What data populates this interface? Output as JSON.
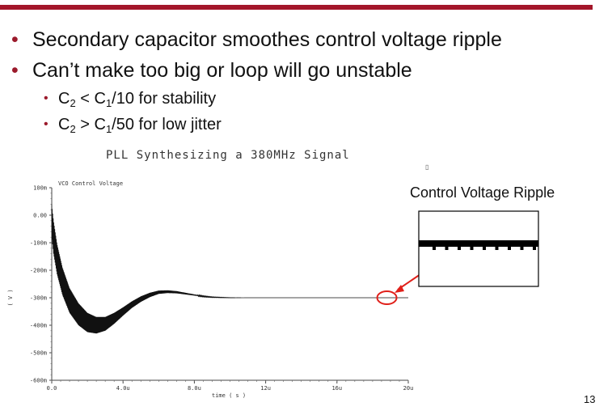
{
  "slide": {
    "bullets": [
      {
        "text": "Secondary capacitor smoothes control voltage ripple"
      },
      {
        "text": "Can’t make too big or loop will go unstable"
      }
    ],
    "sub_bullets": [
      {
        "a": "C",
        "a_sub": "2",
        "op": " < ",
        "b": "C",
        "b_sub": "1",
        "rest": "/10 for stability"
      },
      {
        "a": "C",
        "a_sub": "2",
        "op": " > ",
        "b": "C",
        "b_sub": "1",
        "rest": "/50 for low jitter"
      }
    ],
    "page_number": "13",
    "stray_mark": "▯",
    "ripple_label": "Control Voltage Ripple",
    "colors": {
      "accent": "#a3162a",
      "highlight": "#e0201a"
    }
  },
  "chart_data": {
    "type": "line",
    "title": "PLL Synthesizing a 380MHz Signal",
    "series_label": "VCO Control Voltage",
    "xlabel": "time ( s )",
    "ylabel": "( V )",
    "xlim": [
      0,
      20
    ],
    "ylim": [
      -0.6,
      0.1
    ],
    "x_ticks": [
      0,
      4,
      8,
      12,
      16,
      20
    ],
    "x_tick_labels": [
      "0.0",
      "4.0u",
      "8.0u",
      "12u",
      "16u",
      "20u"
    ],
    "y_ticks": [
      0.1,
      0.0,
      -0.1,
      -0.2,
      -0.3,
      -0.4,
      -0.5,
      -0.6
    ],
    "y_tick_labels": [
      "100m",
      "0.00",
      "-100m",
      "-200m",
      "-300m",
      "-400m",
      "-500m",
      "-600m"
    ],
    "envelope": {
      "x": [
        0,
        0.1,
        0.3,
        0.6,
        1.0,
        1.5,
        2.0,
        2.5,
        3.0,
        3.5,
        4.0,
        4.5,
        5.0,
        5.5,
        6.0,
        6.5,
        7.0,
        7.5,
        8.0,
        8.5,
        9.0,
        10,
        11,
        12,
        14,
        16,
        18,
        20
      ],
      "mean": [
        -0.02,
        -0.08,
        -0.16,
        -0.24,
        -0.31,
        -0.36,
        -0.39,
        -0.4,
        -0.395,
        -0.375,
        -0.35,
        -0.325,
        -0.305,
        -0.29,
        -0.28,
        -0.278,
        -0.28,
        -0.285,
        -0.29,
        -0.295,
        -0.298,
        -0.3,
        -0.3,
        -0.3,
        -0.3,
        -0.3,
        -0.3,
        -0.3
      ],
      "half_width": [
        0.06,
        0.06,
        0.055,
        0.05,
        0.045,
        0.04,
        0.035,
        0.03,
        0.025,
        0.02,
        0.015,
        0.012,
        0.01,
        0.008,
        0.006,
        0.005,
        0.004,
        0.003,
        0.002,
        0.0015,
        0.001,
        0.0005,
        0,
        0,
        0,
        0,
        0,
        0
      ]
    },
    "highlight_x": 18.8,
    "highlight_y": -0.3
  }
}
